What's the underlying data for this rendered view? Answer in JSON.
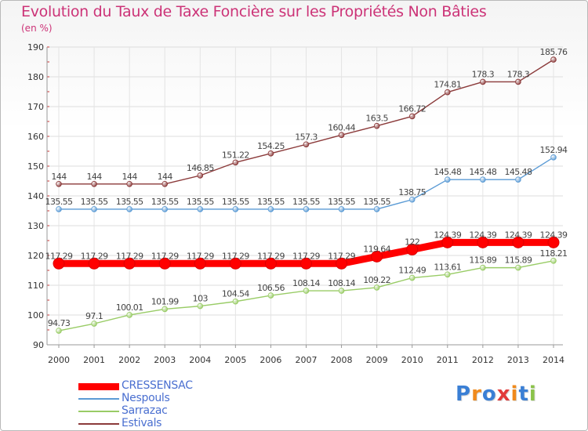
{
  "title": "Evolution du Taux de Taxe Foncière sur les Propriétés Non Bâties",
  "unit": "(en %)",
  "logo": {
    "text": "Proxiti",
    "letter_colors": [
      "#3a7fd5",
      "#f08a1c",
      "#3a7fd5",
      "#e23b3b",
      "#f08a1c",
      "#3a7fd5",
      "#8bc34a"
    ]
  },
  "chart_data": {
    "type": "line",
    "categories": [
      "2000",
      "2001",
      "2002",
      "2003",
      "2004",
      "2005",
      "2006",
      "2007",
      "2008",
      "2009",
      "2010",
      "2011",
      "2012",
      "2013",
      "2014"
    ],
    "ylim": [
      90,
      190
    ],
    "yticks": [
      90,
      100,
      110,
      120,
      130,
      140,
      150,
      160,
      170,
      180,
      190
    ],
    "grid": true,
    "legend_position": "bottom-left",
    "series": [
      {
        "name": "CRESSENSAC",
        "color": "#ff0000",
        "highlight": true,
        "values": [
          117.29,
          117.29,
          117.29,
          117.29,
          117.29,
          117.29,
          117.29,
          117.29,
          117.29,
          119.64,
          122,
          124.39,
          124.39,
          124.39,
          124.39
        ],
        "labels": [
          "117.29",
          "117.29",
          "117.29",
          "117.29",
          "117.29",
          "117.29",
          "117.29",
          "117.29",
          "117.29",
          "119.64",
          "122",
          "124.39",
          "124.39",
          "124.39",
          "124.39"
        ]
      },
      {
        "name": "Nespouls",
        "color": "#5b9bd5",
        "values": [
          135.55,
          135.55,
          135.55,
          135.55,
          135.55,
          135.55,
          135.55,
          135.55,
          135.55,
          135.55,
          138.75,
          145.48,
          145.48,
          145.48,
          152.94
        ],
        "labels": [
          "135.55",
          "135.55",
          "135.55",
          "135.55",
          "135.55",
          "135.55",
          "135.55",
          "135.55",
          "135.55",
          "135.55",
          "138.75",
          "145.48",
          "145.48",
          "145.48",
          "152.94"
        ]
      },
      {
        "name": "Sarrazac",
        "color": "#99cc66",
        "values": [
          94.73,
          97.1,
          100.01,
          101.99,
          103,
          104.54,
          106.56,
          108.14,
          108.14,
          109.22,
          112.49,
          113.61,
          115.89,
          115.89,
          118.21
        ],
        "labels": [
          "94.73",
          "97.1",
          "100.01",
          "101.99",
          "103",
          "104.54",
          "106.56",
          "108.14",
          "108.14",
          "109.22",
          "112.49",
          "113.61",
          "115.89",
          "115.89",
          "118.21"
        ]
      },
      {
        "name": "Estivals",
        "color": "#8b3a3a",
        "values": [
          144,
          144,
          144,
          144,
          146.85,
          151.22,
          154.25,
          157.3,
          160.44,
          163.5,
          166.72,
          174.81,
          178.3,
          178.3,
          185.76
        ],
        "labels": [
          "144",
          "144",
          "144",
          "144",
          "146.85",
          "151.22",
          "154.25",
          "157.3",
          "160.44",
          "163.5",
          "166.72",
          "174.81",
          "178.3",
          "178.3",
          "185.76"
        ]
      }
    ]
  }
}
